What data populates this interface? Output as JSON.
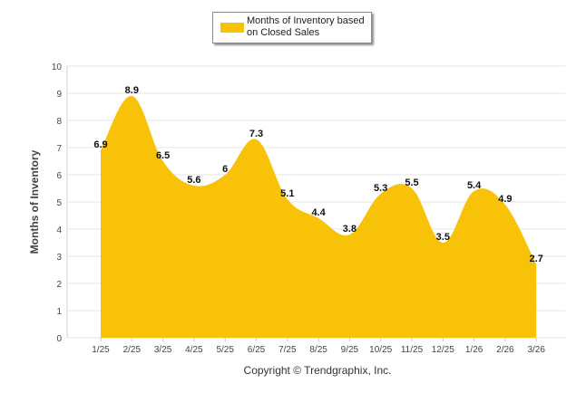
{
  "chart_data": {
    "type": "area",
    "categories": [
      "1/25",
      "2/25",
      "3/25",
      "4/25",
      "5/25",
      "6/25",
      "7/25",
      "8/25",
      "9/25",
      "10/25",
      "11/25",
      "12/25",
      "1/26",
      "2/26",
      "3/26"
    ],
    "series": [
      {
        "name": "Months of Inventory based on Closed Sales",
        "values": [
          6.9,
          8.9,
          6.5,
          5.6,
          6,
          7.3,
          5.1,
          4.4,
          3.8,
          5.3,
          5.5,
          3.5,
          5.4,
          4.9,
          2.7
        ],
        "labels": [
          "6.9",
          "8.9",
          "6.5",
          "5.6",
          "6",
          "7.3",
          "5.1",
          "4.4",
          "3.8",
          "5.3",
          "5.5",
          "3.5",
          "5.4",
          "4.9",
          "2.7"
        ],
        "color": "#f7c207"
      }
    ],
    "ylabel": "Months of Inventory",
    "xlabel": "",
    "ylim": [
      0,
      10
    ],
    "yticks": [
      "0",
      "1",
      "2",
      "3",
      "4",
      "5",
      "6",
      "7",
      "8",
      "9",
      "10"
    ],
    "grid": true,
    "legend_position": "top-center",
    "credit": "Copyright © Trendgraphix, Inc."
  }
}
